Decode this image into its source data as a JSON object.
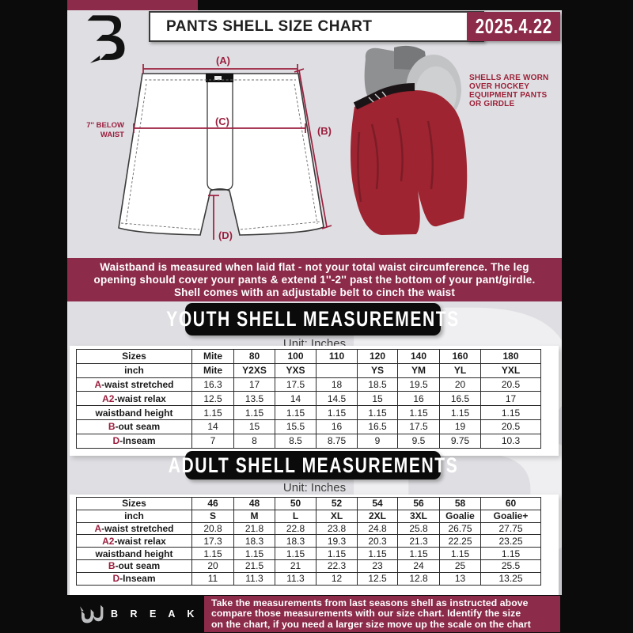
{
  "header": {
    "title": "PANTS SHELL SIZE CHART",
    "date": "2025.4.22"
  },
  "diagram": {
    "label_a": "(A)",
    "label_b": "(B)",
    "label_c": "(C)",
    "label_d": "(D)",
    "below_waist_line1": "7'' BELOW",
    "below_waist_line2": "WAIST",
    "side_note_lines": [
      "SHELLS ARE WORN",
      "OVER HOCKEY",
      "EQUIPMENT PANTS",
      "OR GIRDLE"
    ]
  },
  "note_banner": {
    "line1": "Waistband is measured when laid flat - not your total waist circumference. The leg",
    "line2": "opening should cover your pants & extend 1''-2'' past the bottom of your pant/girdle.",
    "line3": "Shell comes with an adjustable belt to cinch the waist"
  },
  "youth": {
    "banner": "YOUTH SHELL MEASUREMENTS",
    "unit": "Unit: Inches",
    "header_row": {
      "label": "Sizes",
      "cells": [
        "Mite",
        "80",
        "100",
        "110",
        "120",
        "140",
        "160",
        "180"
      ]
    },
    "subheader_row": {
      "label": "inch",
      "cells": [
        "Mite",
        "Y2XS",
        "YXS",
        "",
        "YS",
        "YM",
        "YL",
        "YXL"
      ]
    },
    "rows": [
      {
        "prefix": "A",
        "label": "-waist stretched",
        "values": [
          "16.3",
          "17",
          "17.5",
          "18",
          "18.5",
          "19.5",
          "20",
          "20.5"
        ]
      },
      {
        "prefix": "A2",
        "label": "-waist relax",
        "values": [
          "12.5",
          "13.5",
          "14",
          "14.5",
          "15",
          "16",
          "16.5",
          "17"
        ]
      },
      {
        "prefix": "",
        "label": "waistband height",
        "values": [
          "1.15",
          "1.15",
          "1.15",
          "1.15",
          "1.15",
          "1.15",
          "1.15",
          "1.15"
        ]
      },
      {
        "prefix": "B",
        "label": "-out seam",
        "values": [
          "14",
          "15",
          "15.5",
          "16",
          "16.5",
          "17.5",
          "19",
          "20.5"
        ]
      },
      {
        "prefix": "D",
        "label": "-Inseam",
        "values": [
          "7",
          "8",
          "8.5",
          "8.75",
          "9",
          "9.5",
          "9.75",
          "10.3"
        ]
      }
    ]
  },
  "adult": {
    "banner": "ADULT SHELL MEASUREMENTS",
    "unit": "Unit: Inches",
    "header_row": {
      "label": "Sizes",
      "cells": [
        "46",
        "48",
        "50",
        "52",
        "54",
        "56",
        "58",
        "60"
      ]
    },
    "subheader_row": {
      "label": "inch",
      "cells": [
        "S",
        "M",
        "L",
        "XL",
        "2XL",
        "3XL",
        "Goalie",
        "Goalie+"
      ]
    },
    "rows": [
      {
        "prefix": "A",
        "label": "-waist stretched",
        "values": [
          "20.8",
          "21.8",
          "22.8",
          "23.8",
          "24.8",
          "25.8",
          "26.75",
          "27.75"
        ]
      },
      {
        "prefix": "A2",
        "label": "-waist relax",
        "values": [
          "17.3",
          "18.3",
          "18.3",
          "19.3",
          "20.3",
          "21.3",
          "22.25",
          "23.25"
        ]
      },
      {
        "prefix": "",
        "label": "waistband height",
        "values": [
          "1.15",
          "1.15",
          "1.15",
          "1.15",
          "1.15",
          "1.15",
          "1.15",
          "1.15"
        ]
      },
      {
        "prefix": "B",
        "label": "-out seam",
        "values": [
          "20",
          "21.5",
          "21",
          "22.3",
          "23",
          "24",
          "25",
          "25.5"
        ]
      },
      {
        "prefix": "D",
        "label": "-Inseam",
        "values": [
          "11",
          "11.3",
          "11.3",
          "12",
          "12.5",
          "12.8",
          "13",
          "13.25"
        ]
      }
    ]
  },
  "footer": {
    "brand": "B R E A K A W A Y",
    "line1": "Take the measurements from last seasons shell as instructed above",
    "line2": "compare those measurements  with our size chart. Identify the size",
    "line3": "on the chart, if you need a larger size move up the scale on the chart"
  },
  "watermark": "B",
  "colors": {
    "maroon": "#8C2B4A",
    "diagram_red": "#9B1F3E",
    "background_gray": "#DFDFE3",
    "black": "#0B0B0B",
    "table_text": "#1A1A1A"
  }
}
